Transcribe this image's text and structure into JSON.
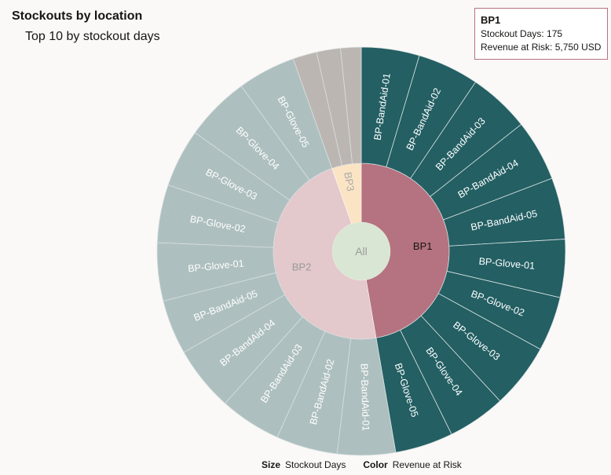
{
  "title": "Stockouts by location",
  "subtitle": "Top 10 by stockout days",
  "tooltip": {
    "title": "BP1",
    "line1": "Stockout Days: 175",
    "line2": "Revenue at Risk: 5,750 USD"
  },
  "legend": {
    "size_label": "Size",
    "size_value": "Stockout Days",
    "color_label": "Color",
    "color_value": "Revenue at Risk"
  },
  "chart_data": {
    "type": "sunburst",
    "title": "Stockouts by location",
    "subtitle": "Top 10 by stockout days",
    "size_measure": "Stockout Days",
    "color_measure": "Revenue at Risk",
    "root": {
      "label": "All",
      "color": "#d9e6d3"
    },
    "nodes": [
      {
        "label": "BP1",
        "value": 175,
        "color": "#b57280",
        "label_color": "#161513",
        "child_color": "#235f63",
        "children": [
          {
            "label": "BP-BandAid-01",
            "value": 17
          },
          {
            "label": "BP-BandAid-02",
            "value": 18
          },
          {
            "label": "BP-BandAid-03",
            "value": 18
          },
          {
            "label": "BP-BandAid-04",
            "value": 18
          },
          {
            "label": "BP-BandAid-05",
            "value": 18
          },
          {
            "label": "BP-Glove-01",
            "value": 17
          },
          {
            "label": "BP-Glove-02",
            "value": 16
          },
          {
            "label": "BP-Glove-03",
            "value": 19
          },
          {
            "label": "BP-Glove-04",
            "value": 17
          },
          {
            "label": "BP-Glove-05",
            "value": 17
          }
        ]
      },
      {
        "label": "BP2",
        "value": 175,
        "color": "#e3c8cc",
        "label_color": "#9a9a9a",
        "child_color": "#aebfbf",
        "children": [
          {
            "label": "BP-BandAid-01",
            "value": 17
          },
          {
            "label": "BP-BandAid-02",
            "value": 18
          },
          {
            "label": "BP-BandAid-03",
            "value": 18
          },
          {
            "label": "BP-BandAid-04",
            "value": 19
          },
          {
            "label": "BP-BandAid-05",
            "value": 16
          },
          {
            "label": "BP-Glove-01",
            "value": 17
          },
          {
            "label": "BP-Glove-02",
            "value": 17
          },
          {
            "label": "BP-Glove-03",
            "value": 17
          },
          {
            "label": "BP-Glove-04",
            "value": 19
          },
          {
            "label": "BP-Glove-05",
            "value": 17
          }
        ]
      },
      {
        "label": "BP3",
        "value": 20,
        "color": "#fbe4c4",
        "label_color": "#aaaaaa",
        "child_color": "#bcb6b2",
        "children": [
          {
            "value": 7
          },
          {
            "value": 7
          },
          {
            "value": 6
          }
        ]
      }
    ]
  }
}
